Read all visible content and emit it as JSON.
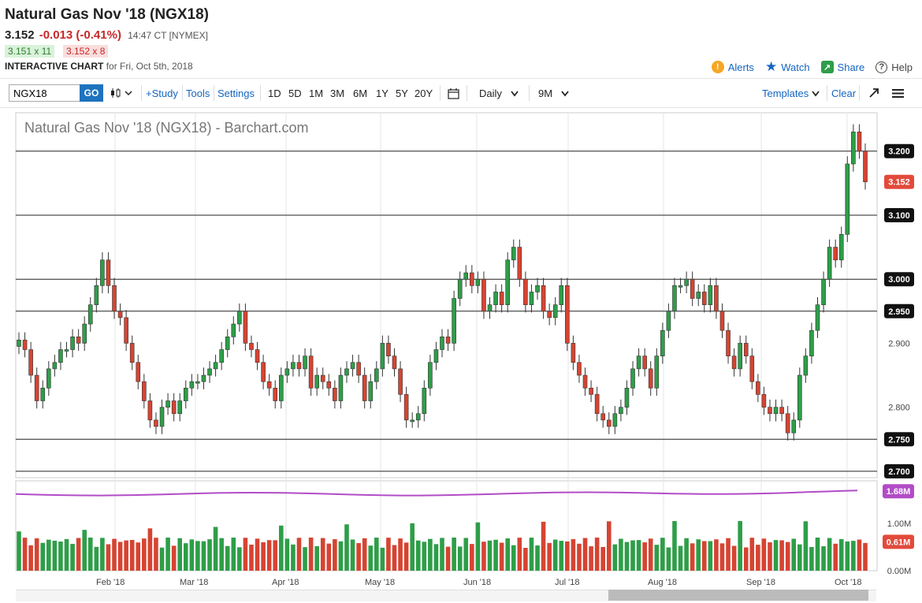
{
  "header": {
    "title": "Natural Gas Nov '18 (NGX18)",
    "last": "3.152",
    "change": "-0.013 (-0.41%)",
    "time": "14:47 CT [NYMEX]",
    "bid": "3.151 x 11",
    "ask": "3.152 x 8",
    "chart_label": "INTERACTIVE CHART",
    "chart_date": "for Fri, Oct 5th, 2018"
  },
  "actions": {
    "alerts": "Alerts",
    "watch": "Watch",
    "share": "Share",
    "help": "Help"
  },
  "toolbar": {
    "symbol": "NGX18",
    "go": "GO",
    "study": "+Study",
    "tools": "Tools",
    "settings": "Settings",
    "periods": [
      "1D",
      "5D",
      "1M",
      "3M",
      "6M",
      "1Y",
      "5Y",
      "20Y"
    ],
    "interval": "Daily",
    "range": "9M",
    "templates": "Templates",
    "clear": "Clear"
  },
  "colors": {
    "up": "#2e9e48",
    "down": "#d64432",
    "avg": "#b24cc7",
    "last_badge": "#e24a3b"
  },
  "chart_data": {
    "type": "candlestick",
    "title": "Natural Gas Nov '18 (NGX18) - Barchart.com",
    "x_labels": [
      "Feb '18",
      "Mar '18",
      "Apr '18",
      "May '18",
      "Jun '18",
      "Jul '18",
      "Aug '18",
      "Sep '18",
      "Oct '18"
    ],
    "y_ticks": [
      "3.200",
      "3.100",
      "3.000",
      "2.950",
      "2.900",
      "2.800",
      "2.750",
      "2.700"
    ],
    "y_range": [
      2.69,
      3.26
    ],
    "horizontal_lines": [
      3.2,
      3.1,
      3.0,
      2.95,
      2.75,
      2.7
    ],
    "highlighted_levels": [
      "3.200",
      "3.100",
      "3.000",
      "2.950",
      "2.750",
      "2.700"
    ],
    "last_price": "3.152",
    "closes": [
      2.905,
      2.89,
      2.85,
      2.81,
      2.83,
      2.86,
      2.87,
      2.89,
      2.89,
      2.91,
      2.9,
      2.93,
      2.96,
      2.99,
      3.03,
      2.99,
      2.95,
      2.94,
      2.9,
      2.87,
      2.84,
      2.81,
      2.78,
      2.77,
      2.8,
      2.81,
      2.79,
      2.81,
      2.83,
      2.84,
      2.84,
      2.85,
      2.86,
      2.87,
      2.89,
      2.91,
      2.93,
      2.95,
      2.9,
      2.89,
      2.87,
      2.84,
      2.83,
      2.81,
      2.85,
      2.86,
      2.87,
      2.86,
      2.88,
      2.83,
      2.85,
      2.84,
      2.83,
      2.81,
      2.85,
      2.86,
      2.87,
      2.85,
      2.81,
      2.84,
      2.86,
      2.9,
      2.88,
      2.86,
      2.82,
      2.78,
      2.78,
      2.79,
      2.83,
      2.87,
      2.89,
      2.91,
      2.9,
      2.97,
      3.0,
      3.01,
      2.99,
      3.0,
      2.95,
      2.96,
      2.98,
      2.96,
      3.03,
      3.05,
      3.0,
      2.96,
      2.98,
      2.99,
      2.95,
      2.94,
      2.96,
      2.99,
      2.9,
      2.87,
      2.85,
      2.83,
      2.82,
      2.79,
      2.78,
      2.77,
      2.79,
      2.8,
      2.83,
      2.86,
      2.88,
      2.86,
      2.83,
      2.88,
      2.92,
      2.95,
      2.99,
      2.99,
      3.0,
      2.97,
      2.98,
      2.96,
      2.99,
      2.95,
      2.92,
      2.88,
      2.86,
      2.9,
      2.88,
      2.84,
      2.82,
      2.8,
      2.79,
      2.8,
      2.79,
      2.76,
      2.78,
      2.85,
      2.88,
      2.92,
      2.96,
      3.0,
      3.05,
      3.03,
      3.07,
      3.18,
      3.23,
      3.2,
      3.152
    ],
    "volume_labels": [
      "1.68M",
      "1.00M",
      "0.61M",
      "0.00M"
    ],
    "avg_volume": "1.68M",
    "last_volume": "0.61M"
  }
}
